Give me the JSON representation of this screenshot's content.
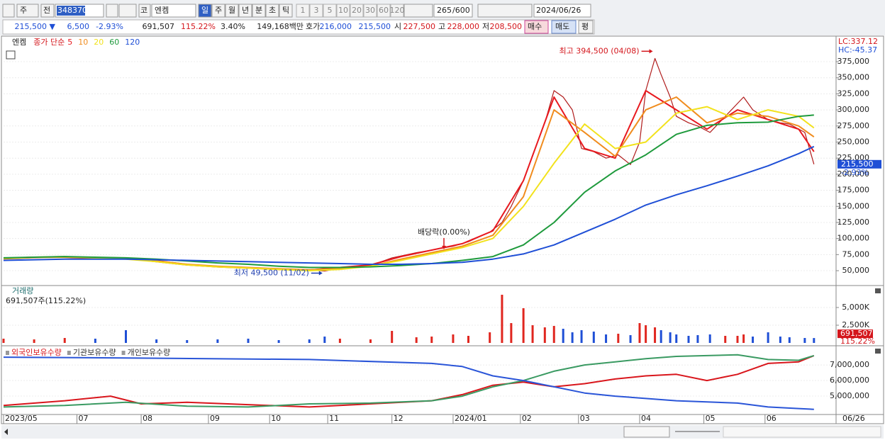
{
  "toolbar": {
    "market": "주",
    "prev": "전",
    "code": "348370",
    "exchange": "코",
    "name": "엔켐",
    "periods": [
      "일",
      "주",
      "월",
      "년",
      "분",
      "초",
      "틱"
    ],
    "minutes": [
      "1",
      "3",
      "5",
      "10",
      "20",
      "30",
      "60",
      "120"
    ],
    "count": "265",
    "max": "/600",
    "date": "2024/06/26"
  },
  "quote": {
    "price": "215,500 ▼",
    "change": "6,500",
    "change_rate": "-2.93%",
    "volume": "691,507",
    "volume_rate": "115.22%",
    "turnover": "3.40%",
    "amount": "149,168백만",
    "bid_ask_label": "호가",
    "ask": "216,000",
    "bid": "215,500",
    "open_label": "시",
    "open": "227,500",
    "high_label": "고",
    "high": "228,000",
    "low_label": "저",
    "low": "208,500",
    "buy": "매수",
    "sell": "매도",
    "avg": "평"
  },
  "chart_data": [
    {
      "type": "line",
      "legend_title": "종가 단순",
      "xlim": [
        0,
        272
      ],
      "ylim": [
        28000,
        413600
      ],
      "grid": true,
      "yticks": [
        {
          "value": 375000,
          "label": "375,000"
        },
        {
          "value": 350000,
          "label": "350,000"
        },
        {
          "value": 325000,
          "label": "325,000"
        },
        {
          "value": 300000,
          "label": "300,000"
        },
        {
          "value": 275000,
          "label": "275,000"
        },
        {
          "value": 250000,
          "label": "250,000"
        },
        {
          "value": 225000,
          "label": "225,000"
        },
        {
          "value": 200000,
          "label": "200,000"
        },
        {
          "value": 175000,
          "label": "175,000"
        },
        {
          "value": 150000,
          "label": "150,000"
        },
        {
          "value": 125000,
          "label": "125,000"
        },
        {
          "value": 100000,
          "label": "100,000"
        },
        {
          "value": 75000,
          "label": "75,000"
        },
        {
          "value": 50000,
          "label": "50,000"
        }
      ],
      "series": [
        {
          "name": "엔켐",
          "color": "#b01c1c",
          "x": [
            0,
            10,
            20,
            30,
            40,
            50,
            60,
            70,
            80,
            90,
            100,
            105,
            110,
            120,
            127,
            135,
            140,
            147,
            152,
            159,
            163,
            166,
            170,
            173,
            177,
            180,
            183,
            186,
            189,
            193,
            197,
            201,
            205,
            208,
            210,
            213,
            215,
            218,
            220,
            224,
            227,
            231,
            236,
            240,
            242,
            245,
            250,
            254,
            257,
            262,
            265
          ],
          "values": [
            68000,
            70000,
            72000,
            70000,
            69000,
            66000,
            60000,
            57000,
            55000,
            53000,
            51000,
            49500,
            54000,
            58000,
            70000,
            78000,
            82000,
            88000,
            95000,
            110000,
            125000,
            150000,
            190000,
            230000,
            280000,
            330000,
            320000,
            300000,
            240000,
            235000,
            225000,
            230000,
            215000,
            250000,
            330000,
            380000,
            355000,
            320000,
            290000,
            280000,
            275000,
            265000,
            290000,
            310000,
            320000,
            300000,
            285000,
            280000,
            278000,
            265000,
            215500
          ]
        },
        {
          "name": "5",
          "color": "#e8191f",
          "x": [
            0,
            10,
            20,
            30,
            40,
            50,
            60,
            70,
            80,
            90,
            100,
            110,
            120,
            130,
            140,
            150,
            160,
            170,
            180,
            190,
            200,
            210,
            220,
            230,
            240,
            250,
            260,
            265
          ],
          "values": [
            69000,
            71000,
            71000,
            69000,
            69000,
            64000,
            59000,
            56000,
            54000,
            52000,
            51000,
            55000,
            59000,
            72000,
            82000,
            92000,
            112000,
            190000,
            320000,
            240000,
            225000,
            330000,
            300000,
            270000,
            300000,
            285000,
            270000,
            235000
          ]
        },
        {
          "name": "10",
          "color": "#f08c1e",
          "x": [
            0,
            10,
            20,
            30,
            40,
            50,
            60,
            70,
            80,
            90,
            100,
            110,
            120,
            130,
            140,
            150,
            160,
            170,
            180,
            190,
            200,
            210,
            220,
            230,
            240,
            250,
            260,
            265
          ],
          "values": [
            69000,
            70500,
            71000,
            70000,
            68500,
            65000,
            60000,
            57000,
            55000,
            53000,
            51500,
            53000,
            57000,
            68000,
            78000,
            88000,
            105000,
            165000,
            300000,
            265000,
            228000,
            300000,
            320000,
            280000,
            295000,
            290000,
            275000,
            258000
          ]
        },
        {
          "name": "20",
          "color": "#f2e21c",
          "x": [
            0,
            10,
            20,
            30,
            40,
            50,
            60,
            70,
            80,
            90,
            100,
            110,
            120,
            130,
            140,
            150,
            160,
            170,
            180,
            190,
            200,
            210,
            220,
            230,
            240,
            250,
            260,
            265
          ],
          "values": [
            69000,
            71000,
            72000,
            70000,
            68000,
            64000,
            59000,
            56000,
            54000,
            52000,
            50000,
            52000,
            57000,
            66000,
            76000,
            86000,
            100000,
            150000,
            217000,
            278000,
            240000,
            250000,
            295000,
            305000,
            285000,
            300000,
            290000,
            272000
          ]
        },
        {
          "name": "60",
          "color": "#1e9a3c",
          "x": [
            0,
            10,
            20,
            30,
            40,
            50,
            60,
            70,
            80,
            90,
            100,
            110,
            120,
            130,
            140,
            150,
            160,
            170,
            180,
            190,
            200,
            210,
            220,
            230,
            240,
            250,
            260,
            265
          ],
          "values": [
            70000,
            71000,
            72000,
            71000,
            70000,
            68000,
            65000,
            62000,
            60000,
            57000,
            55000,
            55000,
            56000,
            58000,
            61000,
            66000,
            72000,
            90000,
            125000,
            172000,
            205000,
            230000,
            262000,
            276000,
            280000,
            281000,
            290000,
            292000
          ]
        },
        {
          "name": "120",
          "color": "#1f4fd6",
          "x": [
            0,
            10,
            20,
            30,
            40,
            50,
            60,
            70,
            80,
            90,
            100,
            110,
            120,
            130,
            140,
            150,
            160,
            170,
            180,
            190,
            200,
            210,
            220,
            230,
            240,
            250,
            260,
            265
          ],
          "values": [
            66000,
            67000,
            68000,
            68000,
            68000,
            67000,
            66000,
            65000,
            64000,
            63000,
            62000,
            61000,
            60000,
            60000,
            61000,
            63000,
            68000,
            76000,
            90000,
            110000,
            130000,
            152000,
            168000,
            182000,
            197000,
            213000,
            232000,
            243000
          ]
        }
      ],
      "annotations": [
        {
          "text": "최고 394,500 (04/08)",
          "x": 213,
          "y": 394500,
          "position": "left"
        },
        {
          "text": "최저 49,500 (11/02)",
          "x": 105,
          "y": 49500,
          "position": "left"
        },
        {
          "text": "배당락(0.00%)",
          "x": 144,
          "y": 81000,
          "position": "above"
        }
      ],
      "lc_label": "LC:337.12",
      "hc_label": "HC:-45.37",
      "price_tag": {
        "value": 215500,
        "label": "215,500"
      },
      "change_label": "-2.93%"
    },
    {
      "type": "bar",
      "title": "거래량",
      "subtitle": "691,507주(115.22%)",
      "xlim": [
        0,
        272
      ],
      "ylim": [
        0,
        8000
      ],
      "grid": true,
      "up_color": "#e0261f",
      "down_color": "#1f4fd6",
      "yticks": [
        {
          "value": 5000,
          "label": "5,000K"
        },
        {
          "value": 2500,
          "label": "2,500K"
        }
      ],
      "x": [
        0,
        10,
        20,
        30,
        40,
        50,
        60,
        70,
        80,
        90,
        100,
        105,
        110,
        120,
        127,
        135,
        140,
        147,
        152,
        159,
        163,
        166,
        170,
        173,
        177,
        180,
        183,
        186,
        189,
        193,
        197,
        201,
        205,
        208,
        210,
        213,
        215,
        218,
        220,
        224,
        227,
        231,
        236,
        240,
        242,
        245,
        250,
        254,
        257,
        262,
        265
      ],
      "values": [
        600,
        500,
        700,
        600,
        1800,
        500,
        400,
        500,
        600,
        400,
        500,
        900,
        600,
        500,
        1700,
        800,
        900,
        1200,
        1000,
        1500,
        6800,
        2800,
        4900,
        2500,
        2200,
        2400,
        2000,
        1500,
        1800,
        1600,
        1200,
        1300,
        1100,
        2800,
        2500,
        2200,
        1800,
        1500,
        1200,
        1000,
        1100,
        1200,
        1000,
        1000,
        1200,
        900,
        1500,
        900,
        800,
        700,
        691.507
      ],
      "volume_tag": {
        "value": 691.507,
        "label": "691,507"
      },
      "ratio_label": "115.22%"
    },
    {
      "type": "line",
      "xlim": [
        0,
        272
      ],
      "ylim": [
        3820000,
        8140000
      ],
      "grid": true,
      "yticks": [
        {
          "value": 7000000,
          "label": "7,000,000"
        },
        {
          "value": 6000000,
          "label": "6,000,000"
        },
        {
          "value": 5000000,
          "label": "5,000,000"
        }
      ],
      "xticks": [
        {
          "value": 0,
          "label": "2023/05"
        },
        {
          "value": 24,
          "label": "07"
        },
        {
          "value": 45,
          "label": "08"
        },
        {
          "value": 67,
          "label": "09"
        },
        {
          "value": 87,
          "label": "10"
        },
        {
          "value": 106,
          "label": "11"
        },
        {
          "value": 127,
          "label": "12"
        },
        {
          "value": 147,
          "label": "2024/01"
        },
        {
          "value": 169,
          "label": "02"
        },
        {
          "value": 188,
          "label": "03"
        },
        {
          "value": 208,
          "label": "04"
        },
        {
          "value": 229,
          "label": "05"
        },
        {
          "value": 249,
          "label": "06"
        }
      ],
      "last_date_label": "06/26",
      "series": [
        {
          "name": "외국인보유수량",
          "color": "#d9161c",
          "x": [
            0,
            20,
            35,
            45,
            60,
            80,
            100,
            120,
            140,
            150,
            160,
            170,
            180,
            190,
            200,
            210,
            220,
            230,
            240,
            250,
            260,
            265
          ],
          "values": [
            4400000,
            4700000,
            5000000,
            4500000,
            4600000,
            4450000,
            4300000,
            4500000,
            4700000,
            5100000,
            5700000,
            5900000,
            5600000,
            5800000,
            6100000,
            6300000,
            6400000,
            6000000,
            6400000,
            7100000,
            7200000,
            7600000
          ]
        },
        {
          "name": "기관보유수량",
          "color": "#3a9a62",
          "x": [
            0,
            20,
            40,
            60,
            80,
            100,
            120,
            140,
            150,
            160,
            170,
            180,
            190,
            200,
            210,
            220,
            230,
            240,
            250,
            260,
            265
          ],
          "values": [
            4300000,
            4400000,
            4600000,
            4350000,
            4300000,
            4500000,
            4550000,
            4700000,
            5000000,
            5600000,
            6000000,
            6600000,
            7000000,
            7200000,
            7400000,
            7550000,
            7600000,
            7650000,
            7350000,
            7300000,
            7600000
          ]
        },
        {
          "name": "개인보유수량",
          "color": "#2a55d8",
          "x": [
            0,
            40,
            100,
            140,
            150,
            160,
            170,
            180,
            190,
            200,
            220,
            240,
            250,
            260,
            265
          ],
          "values": [
            7500000,
            7450000,
            7350000,
            7100000,
            6900000,
            6300000,
            6000000,
            5600000,
            5200000,
            5000000,
            4700000,
            4550000,
            4300000,
            4200000,
            4150000
          ]
        }
      ]
    }
  ]
}
